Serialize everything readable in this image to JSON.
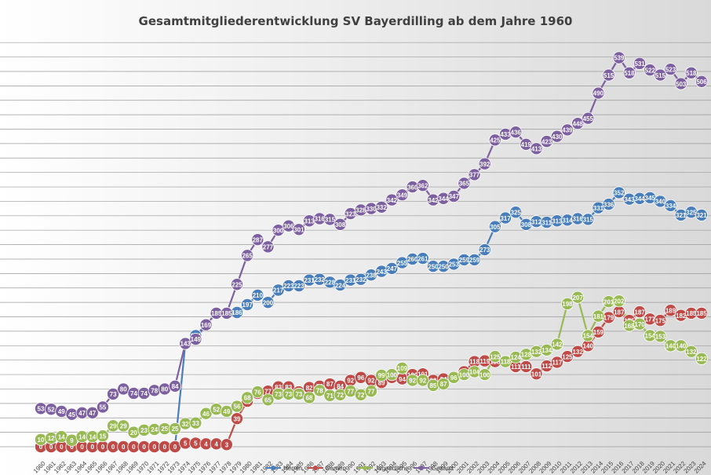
{
  "chart_data": {
    "type": "line",
    "title": "Gesamtmitgliederentwicklung SV Bayerdilling ab dem Jahre 1960",
    "xlabel": "",
    "ylabel": "",
    "ylim": [
      0,
      570
    ],
    "grid": true,
    "legend_position": "bottom",
    "categories": [
      "1960",
      "1961",
      "1962",
      "1963",
      "1964",
      "1965",
      "1966",
      "1967",
      "1968",
      "1969",
      "1970",
      "1971",
      "1972",
      "1973",
      "1974",
      "1975",
      "1976",
      "1977",
      "1978",
      "1979",
      "1980",
      "1981",
      "1982",
      "1983",
      "1984",
      "1985",
      "1986",
      "1987",
      "1988",
      "1989",
      "1990",
      "1991",
      "1992",
      "1993",
      "1994",
      "1995",
      "1996",
      "1997",
      "1998",
      "1999",
      "2000",
      "2001",
      "2002",
      "2003",
      "2004",
      "2005",
      "2006",
      "2007",
      "2008",
      "2009",
      "2010",
      "2011",
      "2012",
      "2013",
      "2014",
      "2015",
      "2016",
      "2017",
      "2018",
      "2019",
      "2020",
      "2021",
      "2022",
      "2023",
      "2024"
    ],
    "series": [
      {
        "name": "Herren",
        "color": "#4a7ebb",
        "values": [
          0,
          0,
          0,
          0,
          0,
          0,
          0,
          0,
          0,
          0,
          0,
          0,
          0,
          0,
          143,
          154,
          169,
          185,
          185,
          186,
          197,
          210,
          200,
          217,
          223,
          223,
          231,
          232,
          228,
          224,
          231,
          232,
          238,
          243,
          247,
          255,
          260,
          261,
          250,
          250,
          253,
          259,
          259,
          273,
          305,
          317,
          325,
          308,
          312,
          311,
          313,
          314,
          316,
          315,
          331,
          336,
          352,
          343,
          344,
          345,
          340,
          334,
          321,
          325,
          321
        ]
      },
      {
        "name": "Damen",
        "color": "#be4b48",
        "values": [
          0,
          0,
          0,
          0,
          0,
          0,
          0,
          0,
          0,
          0,
          0,
          0,
          0,
          0,
          5,
          5,
          4,
          4,
          3,
          39,
          63,
          74,
          77,
          83,
          83,
          76,
          82,
          84,
          87,
          84,
          92,
          96,
          92,
          89,
          96,
          94,
          100,
          101,
          92,
          94,
          96,
          104,
          118,
          119,
          118,
          118,
          111,
          111,
          101,
          112,
          117,
          125,
          132,
          140,
          159,
          179,
          187,
          175,
          187,
          177,
          175,
          189,
          182,
          185,
          185
        ]
      },
      {
        "name": "Jugendliche",
        "color": "#98b954",
        "values": [
          10,
          12,
          14,
          9,
          14,
          14,
          15,
          29,
          29,
          20,
          23,
          24,
          25,
          25,
          32,
          33,
          46,
          52,
          49,
          56,
          68,
          76,
          65,
          73,
          73,
          73,
          68,
          78,
          71,
          72,
          77,
          72,
          77,
          99,
          100,
          109,
          92,
          92,
          85,
          87,
          96,
          100,
          104,
          100,
          125,
          118,
          124,
          128,
          132,
          134,
          142,
          198,
          207,
          154,
          181,
          201,
          202,
          168,
          170,
          154,
          153,
          140,
          140,
          132,
          122
        ]
      },
      {
        "name": "Gesamt",
        "color": "#7d60a0",
        "values": [
          53,
          52,
          49,
          45,
          47,
          47,
          55,
          73,
          80,
          74,
          74,
          78,
          80,
          84,
          143,
          149,
          169,
          185,
          185,
          225,
          265,
          287,
          277,
          300,
          306,
          301,
          313,
          316,
          315,
          308,
          323,
          328,
          330,
          332,
          342,
          349,
          360,
          362,
          342,
          344,
          347,
          365,
          377,
          392,
          425,
          433,
          436,
          419,
          413,
          423,
          430,
          439,
          448,
          455,
          490,
          515,
          539,
          518,
          531,
          522,
          515,
          523,
          503,
          518,
          506
        ]
      }
    ]
  }
}
